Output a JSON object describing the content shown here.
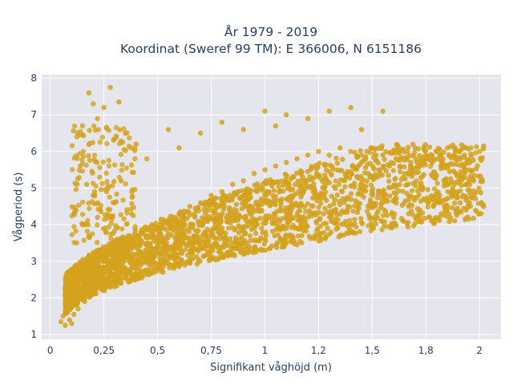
{
  "chart_data": {
    "type": "scatter",
    "title": "År 1979 - 2019",
    "subtitle": "Koordinat (Sweref 99 TM): E 366006, N 6151186",
    "xlabel": "Signifikant våghöjd (m)",
    "ylabel": "Vågperiod (s)",
    "xlim": [
      -0.04,
      2.1
    ],
    "ylim": [
      0.87,
      8.1
    ],
    "x_ticks": [
      0,
      0.25,
      0.5,
      0.75,
      1,
      1.25,
      1.5,
      1.75,
      2
    ],
    "x_tick_labels": [
      "0",
      "0,25",
      "0,5",
      "0,75",
      "1",
      "1,2",
      "1,5",
      "1,8",
      "2"
    ],
    "y_ticks": [
      1,
      2,
      3,
      4,
      5,
      6,
      7,
      8
    ],
    "y_tick_labels": [
      "1",
      "2",
      "3",
      "4",
      "5",
      "6",
      "7",
      "8"
    ],
    "grid": true,
    "legend": "none",
    "colors": {
      "marker": "#d4a21c",
      "plot_background": "#e5e5ee",
      "grid": "#ffffff",
      "text": "#2a3f5f"
    },
    "series": [
      {
        "values_note_free": true,
        "points": [
          [
            0.05,
            1.35
          ],
          [
            0.06,
            1.5
          ],
          [
            0.07,
            1.25
          ],
          [
            0.08,
            1.6
          ],
          [
            0.09,
            1.4
          ],
          [
            0.1,
            1.3
          ],
          [
            0.1,
            1.8
          ],
          [
            0.11,
            1.55
          ],
          [
            0.12,
            2.0
          ],
          [
            0.12,
            2.4
          ],
          [
            0.13,
            1.7
          ],
          [
            0.14,
            2.6
          ],
          [
            0.15,
            2.2
          ],
          [
            0.16,
            1.9
          ],
          [
            0.17,
            2.8
          ],
          [
            0.18,
            2.1
          ],
          [
            0.19,
            3.0
          ],
          [
            0.2,
            2.4
          ],
          [
            0.21,
            2.2
          ],
          [
            0.22,
            2.9
          ],
          [
            0.24,
            2.5
          ],
          [
            0.25,
            3.1
          ],
          [
            0.26,
            2.3
          ],
          [
            0.28,
            2.7
          ],
          [
            0.3,
            3.2
          ],
          [
            0.32,
            2.6
          ],
          [
            0.34,
            3.4
          ],
          [
            0.35,
            2.8
          ],
          [
            0.37,
            3.0
          ],
          [
            0.4,
            3.5
          ],
          [
            0.42,
            2.9
          ],
          [
            0.45,
            3.7
          ],
          [
            0.47,
            3.1
          ],
          [
            0.5,
            3.9
          ],
          [
            0.52,
            3.2
          ],
          [
            0.55,
            4.1
          ],
          [
            0.58,
            3.4
          ],
          [
            0.6,
            4.3
          ],
          [
            0.62,
            3.5
          ],
          [
            0.65,
            4.5
          ],
          [
            0.68,
            3.7
          ],
          [
            0.7,
            4.6
          ],
          [
            0.72,
            3.8
          ],
          [
            0.75,
            4.8
          ],
          [
            0.78,
            3.9
          ],
          [
            0.8,
            4.9
          ],
          [
            0.83,
            4.1
          ],
          [
            0.85,
            5.1
          ],
          [
            0.88,
            4.2
          ],
          [
            0.9,
            5.2
          ],
          [
            0.93,
            4.3
          ],
          [
            0.95,
            5.4
          ],
          [
            0.98,
            4.4
          ],
          [
            1.0,
            5.5
          ],
          [
            1.03,
            4.6
          ],
          [
            1.05,
            5.6
          ],
          [
            1.08,
            4.7
          ],
          [
            1.1,
            5.7
          ],
          [
            1.13,
            4.8
          ],
          [
            1.15,
            5.8
          ],
          [
            1.18,
            4.9
          ],
          [
            1.2,
            5.9
          ],
          [
            1.23,
            5.0
          ],
          [
            1.25,
            6.0
          ],
          [
            1.28,
            5.1
          ],
          [
            1.3,
            5.9
          ],
          [
            1.33,
            5.2
          ],
          [
            1.35,
            6.1
          ],
          [
            1.38,
            5.3
          ],
          [
            1.4,
            6.0
          ],
          [
            1.43,
            5.3
          ],
          [
            1.45,
            5.9
          ],
          [
            1.48,
            5.4
          ],
          [
            1.5,
            6.1
          ],
          [
            1.53,
            5.5
          ],
          [
            1.55,
            5.9
          ],
          [
            1.58,
            5.6
          ],
          [
            1.6,
            6.0
          ],
          [
            1.63,
            5.6
          ],
          [
            1.65,
            5.8
          ],
          [
            1.68,
            5.7
          ],
          [
            1.7,
            6.1
          ],
          [
            1.73,
            5.8
          ],
          [
            1.75,
            5.9
          ],
          [
            1.78,
            5.7
          ],
          [
            1.8,
            6.0
          ],
          [
            1.83,
            5.8
          ],
          [
            1.85,
            6.1
          ],
          [
            1.88,
            5.9
          ],
          [
            1.9,
            6.0
          ],
          [
            1.93,
            5.9
          ],
          [
            1.96,
            6.1
          ],
          [
            2.0,
            6.0
          ],
          [
            2.02,
            6.15
          ],
          [
            1.95,
            5.5
          ],
          [
            1.82,
            5.6
          ],
          [
            0.15,
            6.7
          ],
          [
            0.18,
            7.6
          ],
          [
            0.2,
            7.3
          ],
          [
            0.22,
            6.9
          ],
          [
            0.25,
            7.2
          ],
          [
            0.28,
            7.75
          ],
          [
            0.32,
            7.35
          ],
          [
            0.35,
            6.5
          ],
          [
            0.14,
            5.6
          ],
          [
            0.17,
            5.1
          ],
          [
            0.2,
            4.8
          ],
          [
            0.23,
            5.3
          ],
          [
            0.27,
            5.0
          ],
          [
            0.3,
            4.6
          ],
          [
            0.33,
            5.2
          ],
          [
            0.38,
            4.9
          ],
          [
            0.12,
            4.4
          ],
          [
            0.15,
            4.0
          ],
          [
            0.18,
            3.7
          ],
          [
            0.22,
            4.2
          ],
          [
            0.26,
            3.8
          ],
          [
            0.4,
            6.2
          ],
          [
            0.45,
            5.8
          ],
          [
            0.55,
            6.6
          ],
          [
            0.6,
            6.1
          ],
          [
            0.7,
            6.5
          ],
          [
            0.8,
            6.8
          ],
          [
            0.9,
            6.6
          ],
          [
            1.0,
            7.1
          ],
          [
            1.05,
            6.7
          ],
          [
            1.1,
            7.0
          ],
          [
            1.2,
            6.9
          ],
          [
            1.3,
            7.1
          ],
          [
            1.4,
            7.2
          ],
          [
            1.45,
            6.6
          ],
          [
            1.55,
            7.1
          ],
          [
            1.1,
            3.5
          ],
          [
            1.15,
            3.45
          ],
          [
            1.0,
            3.6
          ],
          [
            0.9,
            3.3
          ]
        ]
      }
    ]
  }
}
